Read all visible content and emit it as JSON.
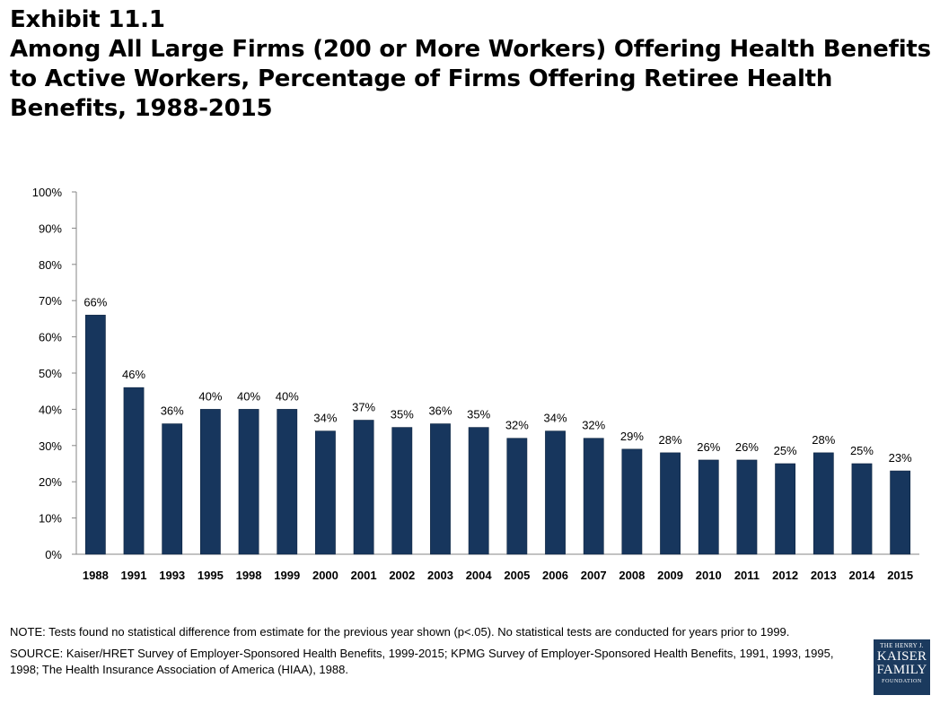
{
  "title": {
    "line1": "Exhibit 11.1",
    "line2": "Among All Large Firms (200 or More Workers) Offering Health Benefits",
    "line3": "to Active Workers, Percentage of Firms Offering Retiree Health",
    "line4": "Benefits, 1988-2015"
  },
  "chart_data": {
    "type": "bar",
    "categories": [
      "1988",
      "1991",
      "1993",
      "1995",
      "1998",
      "1999",
      "2000",
      "2001",
      "2002",
      "2003",
      "2004",
      "2005",
      "2006",
      "2007",
      "2008",
      "2009",
      "2010",
      "2011",
      "2012",
      "2013",
      "2014",
      "2015"
    ],
    "values": [
      66,
      46,
      36,
      40,
      40,
      40,
      34,
      37,
      35,
      36,
      35,
      32,
      34,
      32,
      29,
      28,
      26,
      26,
      25,
      28,
      25,
      23
    ],
    "ylim": [
      0,
      100
    ],
    "yticks": [
      "0%",
      "10%",
      "20%",
      "30%",
      "40%",
      "50%",
      "60%",
      "70%",
      "80%",
      "90%",
      "100%"
    ],
    "xlabel": "",
    "ylabel": "",
    "bar_color": "#17365d",
    "grid": false
  },
  "notes": {
    "note": "NOTE: Tests found no statistical difference from estimate for the previous year shown (p<.05).  No statistical tests are conducted for years prior to 1999.",
    "source": "SOURCE: Kaiser/HRET Survey of Employer-Sponsored Health Benefits, 1999-2015; KPMG Survey of Employer-Sponsored Health Benefits, 1991, 1993, 1995, 1998; The Health Insurance Association of America (HIAA), 1988."
  },
  "logo": {
    "line1": "THE HENRY J.",
    "line2": "KAISER",
    "line3": "FAMILY",
    "line4": "FOUNDATION"
  }
}
